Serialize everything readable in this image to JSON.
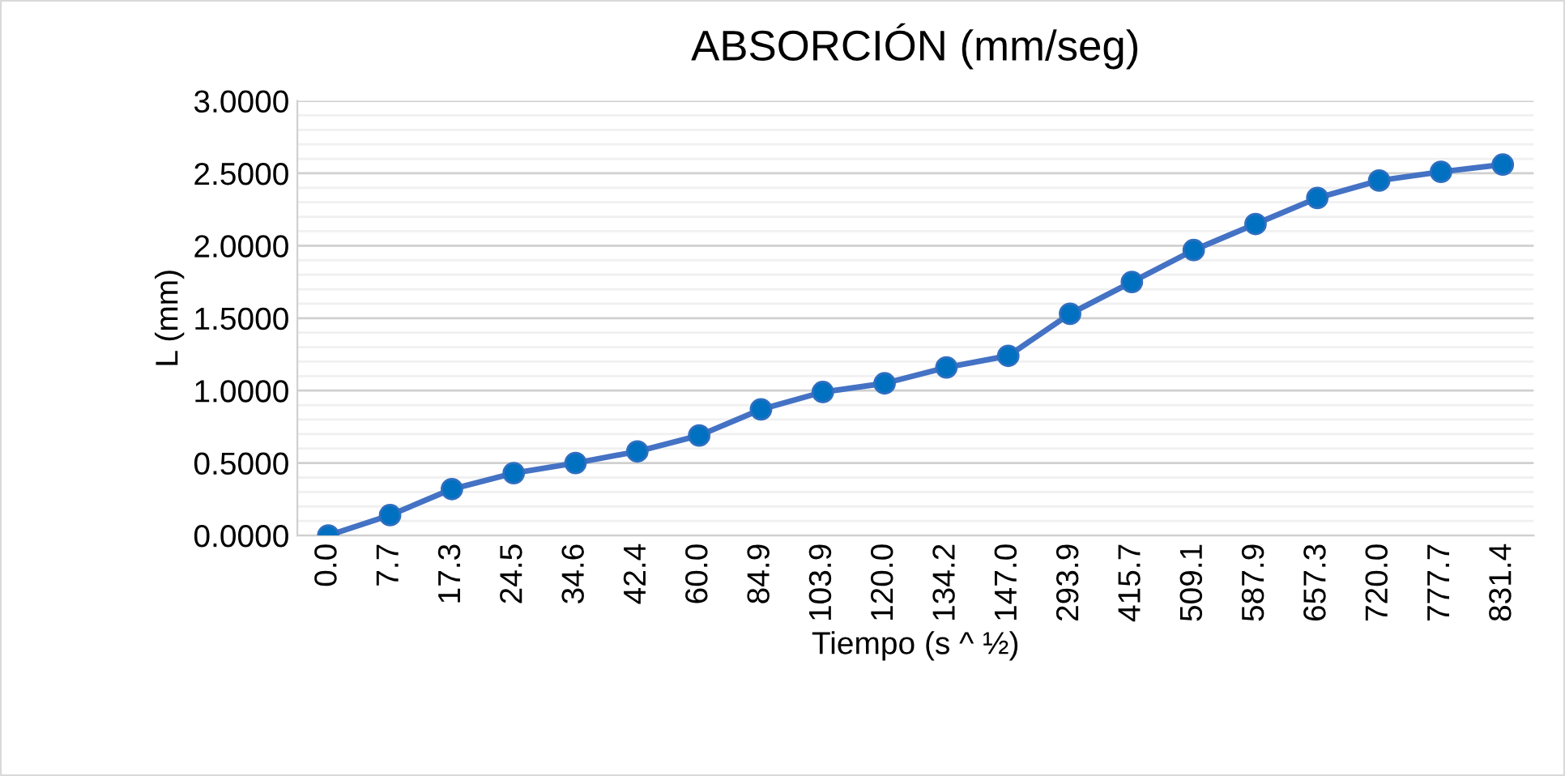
{
  "chart_data": {
    "type": "line",
    "title": "ABSORCIÓN (mm/seg)",
    "xlabel": "Tiempo (s ^ ½)",
    "ylabel": "L (mm)",
    "categories": [
      "0.0",
      "7.7",
      "17.3",
      "24.5",
      "34.6",
      "42.4",
      "60.0",
      "84.9",
      "103.9",
      "120.0",
      "134.2",
      "147.0",
      "293.9",
      "415.7",
      "509.1",
      "587.9",
      "657.3",
      "720.0",
      "777.7",
      "831.4"
    ],
    "series": [
      {
        "color": "#4472c4",
        "values": [
          0,
          0.14,
          0.32,
          0.43,
          0.5,
          0.58,
          0.69,
          0.87,
          0.99,
          1.05,
          1.16,
          1.24,
          1.53,
          1.75,
          1.97,
          2.15,
          2.33,
          2.45,
          2.51,
          2.56
        ]
      }
    ],
    "ylim": [
      0,
      3
    ],
    "yticks": [
      {
        "value": 0,
        "label": "0.0000"
      },
      {
        "value": 0.5,
        "label": "0.5000"
      },
      {
        "value": 1,
        "label": "1.0000"
      },
      {
        "value": 1.5,
        "label": "1.5000"
      },
      {
        "value": 2,
        "label": "2.0000"
      },
      {
        "value": 2.5,
        "label": "2.5000"
      },
      {
        "value": 3,
        "label": "3.0000"
      }
    ],
    "grid": "y",
    "marker": "circle",
    "line_style": "solid",
    "legend": false
  }
}
